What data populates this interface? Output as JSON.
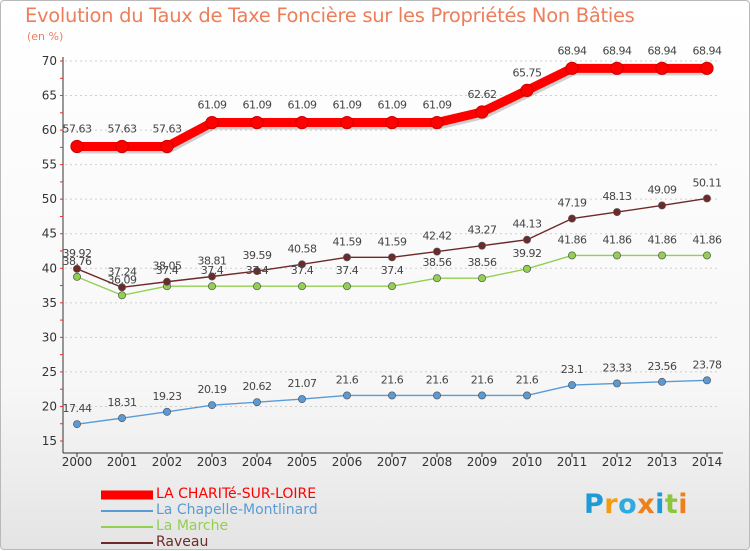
{
  "header": {
    "title": "Evolution du Taux de Taxe Foncière sur les Propriétés Non Bâties",
    "unit": "(en %)"
  },
  "chart_data": {
    "type": "line",
    "title": "Evolution du Taux de Taxe Foncière sur les Propriétés Non Bâties",
    "ylabel": "(en %)",
    "xlabel": "",
    "x": [
      "2000",
      "2001",
      "2002",
      "2003",
      "2004",
      "2005",
      "2006",
      "2007",
      "2008",
      "2009",
      "2010",
      "2011",
      "2012",
      "2013",
      "2014"
    ],
    "ylim": [
      15,
      70
    ],
    "yticks": [
      15,
      20,
      25,
      30,
      35,
      40,
      45,
      50,
      55,
      60,
      65,
      70
    ],
    "grid": "horizontal dashed",
    "legend_position": "bottom-left",
    "series": [
      {
        "name": "LA CHARITé-SUR-LOIRE",
        "color": "#ff0000",
        "values": [
          57.63,
          57.63,
          57.63,
          61.09,
          61.09,
          61.09,
          61.09,
          61.09,
          61.09,
          62.62,
          65.75,
          68.94,
          68.94,
          68.94,
          68.94
        ],
        "labels": [
          "57.63",
          "57.63",
          "57.63",
          "61.09",
          "61.09",
          "61.09",
          "61.09",
          "61.09",
          "61.09",
          "62.62",
          "65.75",
          "68.94",
          "68.94",
          "68.94",
          "68.94"
        ]
      },
      {
        "name": "La Chapelle-Montlinard",
        "color": "#5b9bd5",
        "values": [
          17.44,
          18.31,
          19.23,
          20.19,
          20.62,
          21.07,
          21.6,
          21.6,
          21.6,
          21.6,
          21.6,
          23.1,
          23.33,
          23.56,
          23.78
        ],
        "labels": [
          "17.44",
          "18.31",
          "19.23",
          "20.19",
          "20.62",
          "21.07",
          "21.6",
          "21.6",
          "21.6",
          "21.6",
          "21.6",
          "23.1",
          "23.33",
          "23.56",
          "23.78"
        ]
      },
      {
        "name": "La Marche",
        "color": "#92d050",
        "values": [
          38.76,
          36.09,
          37.4,
          37.4,
          37.4,
          37.4,
          37.4,
          37.4,
          38.56,
          38.56,
          39.92,
          41.86,
          41.86,
          41.86,
          41.86
        ],
        "labels": [
          "38.76",
          "36.09",
          "37.4",
          "37.4",
          "37.4",
          "37.4",
          "37.4",
          "37.4",
          "38.56",
          "38.56",
          "39.92",
          "41.86",
          "41.86",
          "41.86",
          "41.86"
        ]
      },
      {
        "name": "Raveau",
        "color": "#6e2a2a",
        "values": [
          39.92,
          37.24,
          38.05,
          38.81,
          39.59,
          40.58,
          41.59,
          41.59,
          42.42,
          43.27,
          44.13,
          47.19,
          48.13,
          49.09,
          50.11
        ],
        "labels": [
          "39.92",
          "37.24",
          "38.05",
          "38.81",
          "39.59",
          "40.58",
          "41.59",
          "41.59",
          "42.42",
          "43.27",
          "44.13",
          "47.19",
          "48.13",
          "49.09",
          "50.11"
        ]
      }
    ]
  },
  "logo": {
    "text": "Proxiti"
  }
}
